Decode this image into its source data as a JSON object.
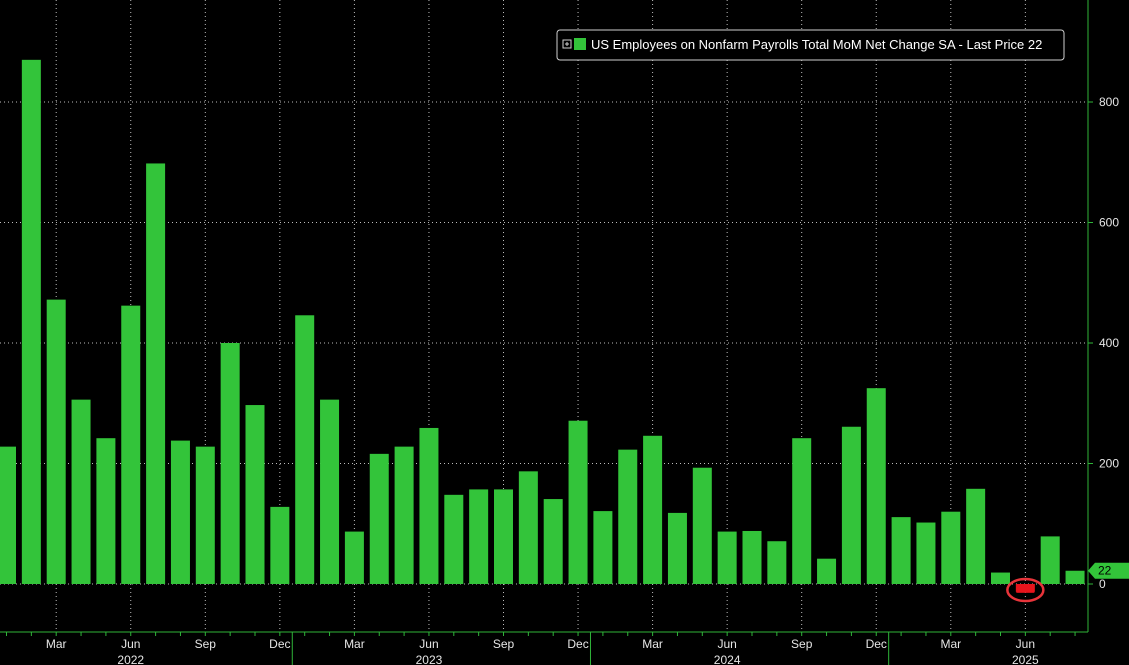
{
  "chart_data": {
    "type": "bar",
    "title": "",
    "legend": "US Employees on Nonfarm Payrolls Total MoM Net Change SA - Last Price 22",
    "legend_position": "top-right",
    "ylim": [
      -80,
      980
    ],
    "yticks": [
      0,
      200,
      400,
      600,
      800
    ],
    "last_price": "22",
    "x": [
      "2022-01",
      "2022-02",
      "2022-03",
      "2022-04",
      "2022-05",
      "2022-06",
      "2022-07",
      "2022-08",
      "2022-09",
      "2022-10",
      "2022-11",
      "2022-12",
      "2023-01",
      "2023-02",
      "2023-03",
      "2023-04",
      "2023-05",
      "2023-06",
      "2023-07",
      "2023-08",
      "2023-09",
      "2023-10",
      "2023-11",
      "2023-12",
      "2024-01",
      "2024-02",
      "2024-03",
      "2024-04",
      "2024-05",
      "2024-06",
      "2024-07",
      "2024-08",
      "2024-09",
      "2024-10",
      "2024-11",
      "2024-12",
      "2025-01",
      "2025-02",
      "2025-03",
      "2025-04",
      "2025-05",
      "2025-06",
      "2025-07",
      "2025-08"
    ],
    "values": [
      228,
      870,
      472,
      306,
      242,
      462,
      698,
      238,
      228,
      400,
      297,
      128,
      446,
      306,
      87,
      216,
      228,
      259,
      148,
      157,
      157,
      187,
      141,
      271,
      121,
      223,
      246,
      118,
      193,
      87,
      88,
      71,
      242,
      42,
      261,
      325,
      111,
      102,
      120,
      158,
      19,
      -13,
      79,
      22
    ],
    "month_labels": [
      {
        "month": "2022-03",
        "label": "Mar"
      },
      {
        "month": "2022-06",
        "label": "Jun"
      },
      {
        "month": "2022-09",
        "label": "Sep"
      },
      {
        "month": "2022-12",
        "label": "Dec"
      },
      {
        "month": "2023-03",
        "label": "Mar"
      },
      {
        "month": "2023-06",
        "label": "Jun"
      },
      {
        "month": "2023-09",
        "label": "Sep"
      },
      {
        "month": "2023-12",
        "label": "Dec"
      },
      {
        "month": "2024-03",
        "label": "Mar"
      },
      {
        "month": "2024-06",
        "label": "Jun"
      },
      {
        "month": "2024-09",
        "label": "Sep"
      },
      {
        "month": "2024-12",
        "label": "Dec"
      },
      {
        "month": "2025-03",
        "label": "Mar"
      },
      {
        "month": "2025-06",
        "label": "Jun"
      }
    ],
    "year_labels": [
      {
        "month": "2022-06",
        "label": "2022"
      },
      {
        "month": "2023-06",
        "label": "2023"
      },
      {
        "month": "2024-06",
        "label": "2024"
      },
      {
        "month": "2025-06",
        "label": "2025"
      }
    ],
    "negative_highlight_month": "2025-06",
    "colors": {
      "background": "#000000",
      "bar": "#33c43a",
      "negative_bar": "#e8141c",
      "highlight_circle": "#e8343a",
      "grid": "#bdbdbd",
      "axis": "#2fb539",
      "text": "#e6e6e6"
    }
  }
}
